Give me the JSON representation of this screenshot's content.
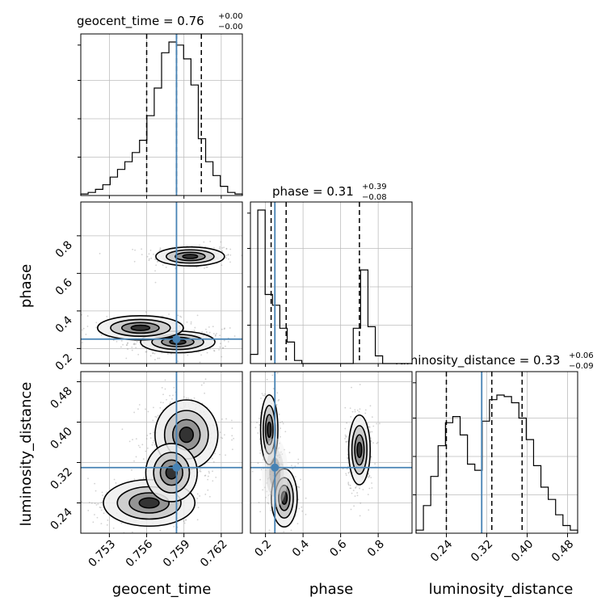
{
  "chart_data": {
    "type": "corner",
    "parameters": [
      "geocent_time",
      "phase",
      "luminosity_distance"
    ],
    "truths": {
      "geocent_time": 0.7584,
      "phase": 0.25,
      "luminosity_distance": 0.31
    },
    "ranges": {
      "geocent_time": [
        0.7507,
        0.7637
      ],
      "phase": [
        0.12,
        0.98
      ],
      "luminosity_distance": [
        0.18,
        0.5
      ]
    },
    "grid": true,
    "titles": [
      {
        "param": "geocent_time",
        "text": "geocent_time = 0.76",
        "plus": "+0.00",
        "minus": "−0.00"
      },
      {
        "param": "phase",
        "text": "phase = 0.31",
        "plus": "+0.39",
        "minus": "−0.08"
      },
      {
        "param": "luminosity_distance",
        "text": "luminosity_distance = 0.33",
        "plus": "+0.06",
        "minus": "−0.09"
      }
    ],
    "axis_labels": {
      "x": [
        "geocent_time",
        "phase",
        "luminosity_distance"
      ],
      "y": [
        "phase",
        "luminosity_distance"
      ]
    },
    "ticks": {
      "geocent_time": {
        "values": [
          0.753,
          0.756,
          0.759,
          0.762
        ],
        "labels": [
          "0.753",
          "0.756",
          "0.759",
          "0.762"
        ]
      },
      "phase": {
        "values": [
          0.2,
          0.4,
          0.6,
          0.8
        ],
        "labels": [
          "0.2",
          "0.4",
          "0.6",
          "0.8"
        ]
      },
      "luminosity_distance": {
        "values": [
          0.24,
          0.32,
          0.4,
          0.48
        ],
        "labels": [
          "0.24",
          "0.32",
          "0.40",
          "0.48"
        ]
      }
    },
    "quantiles": {
      "geocent_time": [
        0.756,
        0.7584,
        0.7604
      ],
      "phase": [
        0.23,
        0.31,
        0.7
      ],
      "luminosity_distance": [
        0.24,
        0.33,
        0.39
      ]
    },
    "histograms": {
      "geocent_time": [
        0.01,
        0.02,
        0.04,
        0.07,
        0.12,
        0.17,
        0.22,
        0.28,
        0.36,
        0.52,
        0.7,
        0.93,
        1.0,
        0.98,
        0.89,
        0.72,
        0.37,
        0.22,
        0.13,
        0.06,
        0.02,
        0.01
      ],
      "phase": [
        0.06,
        1.0,
        0.45,
        0.38,
        0.23,
        0.14,
        0.02,
        0.0,
        0.0,
        0.0,
        0.0,
        0.0,
        0.0,
        0.0,
        0.23,
        0.61,
        0.24,
        0.05,
        0.0,
        0.0,
        0.0,
        0.0
      ],
      "luminosity_distance": [
        0.02,
        0.18,
        0.37,
        0.57,
        0.72,
        0.76,
        0.64,
        0.45,
        0.41,
        0.73,
        0.87,
        0.9,
        0.89,
        0.85,
        0.75,
        0.61,
        0.44,
        0.3,
        0.22,
        0.12,
        0.05,
        0.02
      ]
    },
    "modes_2d": {
      "phase_vs_geocent_time": [
        {
          "x": 0.7595,
          "y": 0.69,
          "sx": 0.0012,
          "sy": 0.022,
          "w": 0.38
        },
        {
          "x": 0.7585,
          "y": 0.235,
          "sx": 0.0013,
          "sy": 0.025,
          "w": 0.42
        },
        {
          "x": 0.7555,
          "y": 0.31,
          "sx": 0.0015,
          "sy": 0.028,
          "w": 0.2
        }
      ],
      "luminosity_distance_vs_geocent_time": [
        {
          "x": 0.7592,
          "y": 0.375,
          "sx": 0.0011,
          "sy": 0.03,
          "w": 0.55
        },
        {
          "x": 0.7562,
          "y": 0.24,
          "sx": 0.0016,
          "sy": 0.02,
          "w": 0.3
        },
        {
          "x": 0.758,
          "y": 0.3,
          "sx": 0.0009,
          "sy": 0.025,
          "w": 0.15
        }
      ],
      "luminosity_distance_vs_phase": [
        {
          "x": 0.22,
          "y": 0.385,
          "sx": 0.02,
          "sy": 0.03,
          "w": 0.3
        },
        {
          "x": 0.3,
          "y": 0.25,
          "sx": 0.03,
          "sy": 0.025,
          "w": 0.22
        },
        {
          "x": 0.7,
          "y": 0.345,
          "sx": 0.025,
          "sy": 0.03,
          "w": 0.4
        },
        {
          "x": 0.25,
          "y": 0.3,
          "sx": 0.03,
          "sy": 0.03,
          "w": 0.08
        }
      ]
    },
    "colors": {
      "truth": "#4682b4",
      "hist": "#000000",
      "scatter": "#7f7f7f",
      "grid": "#bdbdbd"
    }
  }
}
